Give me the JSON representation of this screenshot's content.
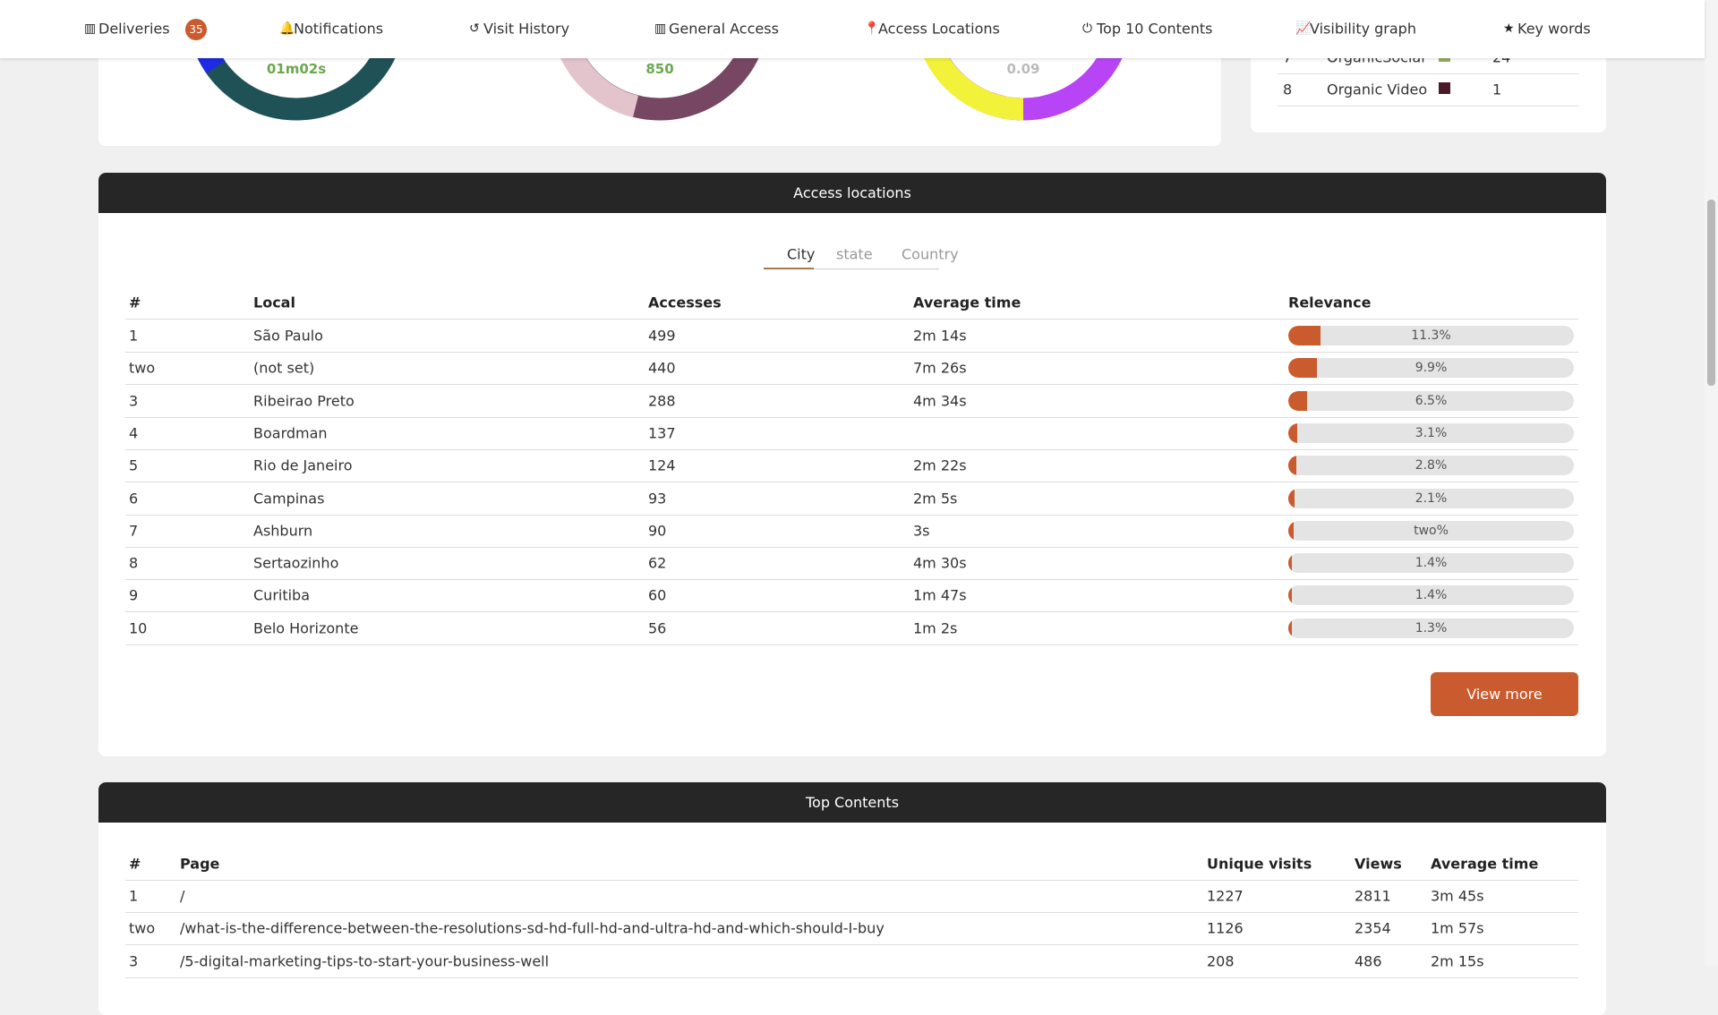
{
  "nav": {
    "items": [
      "Deliveries",
      "Notifications",
      "Visit History",
      "General Access",
      "Access Locations",
      "Top 10 Contents",
      "Visibility graph",
      "Key words"
    ],
    "badge": 35
  },
  "summary": {
    "donuts": [
      "01m02s",
      "850",
      "0.09"
    ],
    "channels": [
      {
        "rank": 7,
        "name": "OrganicSocial",
        "color": "#8fae5a",
        "value": 24
      },
      {
        "rank": 8,
        "name": "Organic Video",
        "color": "#4a1a26",
        "value": 1
      }
    ]
  },
  "access_locations": {
    "title": "Access locations",
    "tabs": [
      "City",
      "state",
      "Country"
    ],
    "columns": [
      "#",
      "Local",
      "Accesses",
      "Average time",
      "Relevance"
    ],
    "rows": [
      {
        "rank": 1,
        "local": "São Paulo",
        "accesses": 499,
        "avg_time": "2m 14s",
        "relevance": {
          "value": 11.3,
          "label": "11.3%"
        }
      },
      {
        "rank": "two",
        "local": "(not set)",
        "accesses": 440,
        "avg_time": "7m 26s",
        "relevance": {
          "value": 9.9,
          "label": "9.9%"
        }
      },
      {
        "rank": 3,
        "local": "Ribeirao Preto",
        "accesses": 288,
        "avg_time": "4m 34s",
        "relevance": {
          "value": 6.5,
          "label": "6.5%"
        }
      },
      {
        "rank": 4,
        "local": "Boardman",
        "accesses": 137,
        "avg_time": null,
        "relevance": {
          "value": 3.1,
          "label": "3.1%"
        }
      },
      {
        "rank": 5,
        "local": "Rio de Janeiro",
        "accesses": 124,
        "avg_time": "2m 22s",
        "relevance": {
          "value": 2.8,
          "label": "2.8%"
        }
      },
      {
        "rank": 6,
        "local": "Campinas",
        "accesses": 93,
        "avg_time": "2m 5s",
        "relevance": {
          "value": 2.1,
          "label": "2.1%"
        }
      },
      {
        "rank": 7,
        "local": "Ashburn",
        "accesses": 90,
        "avg_time": "3s",
        "relevance": {
          "value": 2,
          "label": "two%"
        }
      },
      {
        "rank": 8,
        "local": "Sertaozinho",
        "accesses": 62,
        "avg_time": "4m 30s",
        "relevance": {
          "value": 1.4,
          "label": "1.4%"
        }
      },
      {
        "rank": 9,
        "local": "Curitiba",
        "accesses": 60,
        "avg_time": "1m 47s",
        "relevance": {
          "value": 1.4,
          "label": "1.4%"
        }
      },
      {
        "rank": 10,
        "local": "Belo Horizonte",
        "accesses": 56,
        "avg_time": "1m 2s",
        "relevance": {
          "value": 1.3,
          "label": "1.3%"
        }
      }
    ],
    "button": "View more"
  },
  "top_contents": {
    "title": "Top Contents",
    "columns": [
      "#",
      "Page",
      "Unique visits",
      "Views",
      "Average time"
    ],
    "rows": [
      {
        "rank": 1,
        "page": "/",
        "unique": 1227,
        "views": 2811,
        "avg_time": "3m 45s"
      },
      {
        "rank": "two",
        "page": "/what-is-the-difference-between-the-resolutions-sd-hd-full-hd-and-ultra-hd-and-which-should-I-buy",
        "unique": 1126,
        "views": 2354,
        "avg_time": "1m 57s"
      },
      {
        "rank": 3,
        "page": "/5-digital-marketing-tips-to-start-your-business-well",
        "unique": 208,
        "views": 486,
        "avg_time": "2m 15s"
      }
    ]
  }
}
